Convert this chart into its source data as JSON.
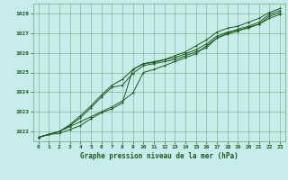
{
  "title": "Graphe pression niveau de la mer (hPa)",
  "background_color": "#c8ecec",
  "grid_color": "#6aaa6a",
  "line_color": "#1a5c1a",
  "xlim": [
    -0.5,
    23.5
  ],
  "ylim": [
    1021.5,
    1028.5
  ],
  "xticks": [
    0,
    1,
    2,
    3,
    4,
    5,
    6,
    7,
    8,
    9,
    10,
    11,
    12,
    13,
    14,
    15,
    16,
    17,
    18,
    19,
    20,
    21,
    22,
    23
  ],
  "yticks": [
    1022,
    1023,
    1024,
    1025,
    1026,
    1027,
    1028
  ],
  "line1_x": [
    0,
    1,
    2,
    3,
    4,
    5,
    6,
    7,
    8,
    9,
    10,
    11,
    12,
    13,
    14,
    15,
    16,
    17,
    18,
    19,
    20,
    21,
    22,
    23
  ],
  "line1_y": [
    1021.7,
    1021.85,
    1021.9,
    1022.1,
    1022.3,
    1022.65,
    1022.95,
    1023.15,
    1023.45,
    1025.15,
    1025.45,
    1025.5,
    1025.65,
    1025.75,
    1025.95,
    1026.15,
    1026.45,
    1026.85,
    1027.05,
    1027.15,
    1027.25,
    1027.45,
    1027.85,
    1028.05
  ],
  "line2_x": [
    0,
    1,
    2,
    3,
    4,
    5,
    6,
    7,
    8,
    9,
    10,
    11,
    12,
    13,
    14,
    15,
    16,
    17,
    18,
    19,
    20,
    21,
    22,
    23
  ],
  "line2_y": [
    1021.7,
    1021.85,
    1022.0,
    1022.25,
    1022.5,
    1022.75,
    1023.0,
    1023.25,
    1023.55,
    1023.95,
    1025.0,
    1025.15,
    1025.35,
    1025.55,
    1025.75,
    1025.95,
    1026.35,
    1026.75,
    1027.0,
    1027.2,
    1027.35,
    1027.55,
    1027.95,
    1028.15
  ],
  "line3_x": [
    0,
    1,
    2,
    3,
    4,
    5,
    6,
    7,
    8,
    9,
    10,
    11,
    12,
    13,
    14,
    15,
    16,
    17,
    18,
    19,
    20,
    21,
    22,
    23
  ],
  "line3_y": [
    1021.7,
    1021.85,
    1022.0,
    1022.3,
    1022.7,
    1023.2,
    1023.75,
    1024.25,
    1024.35,
    1024.95,
    1025.35,
    1025.45,
    1025.55,
    1025.65,
    1025.85,
    1026.05,
    1026.25,
    1026.75,
    1026.95,
    1027.1,
    1027.3,
    1027.45,
    1027.75,
    1027.95
  ],
  "line4_x": [
    0,
    1,
    2,
    3,
    4,
    5,
    6,
    7,
    8,
    9,
    10,
    11,
    12,
    13,
    14,
    15,
    16,
    17,
    18,
    19,
    20,
    21,
    22,
    23
  ],
  "line4_y": [
    1021.7,
    1021.85,
    1022.0,
    1022.35,
    1022.8,
    1023.3,
    1023.85,
    1024.35,
    1024.65,
    1025.15,
    1025.45,
    1025.55,
    1025.65,
    1025.85,
    1026.05,
    1026.35,
    1026.65,
    1027.05,
    1027.25,
    1027.35,
    1027.55,
    1027.75,
    1028.05,
    1028.25
  ]
}
